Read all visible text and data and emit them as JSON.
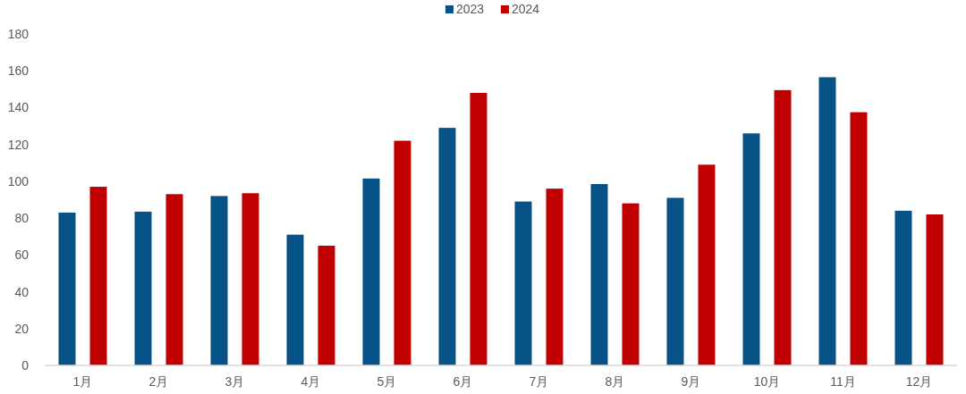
{
  "chart_data": {
    "type": "bar",
    "categories": [
      "1月",
      "2月",
      "3月",
      "4月",
      "5月",
      "6月",
      "7月",
      "8月",
      "9月",
      "10月",
      "11月",
      "12月"
    ],
    "series": [
      {
        "name": "2023",
        "color": "#075286",
        "values": [
          83,
          83.5,
          92,
          71,
          101.5,
          129,
          89,
          98.5,
          91,
          126,
          156.5,
          84
        ]
      },
      {
        "name": "2024",
        "color": "#c00000",
        "values": [
          97,
          93,
          93.5,
          65,
          122,
          148,
          96,
          88,
          109,
          149.5,
          137.5,
          82
        ]
      }
    ],
    "ylim": [
      0,
      180
    ],
    "yticks": [
      0,
      20,
      40,
      60,
      80,
      100,
      120,
      140,
      160,
      180
    ],
    "grid": false,
    "legend": "top"
  }
}
